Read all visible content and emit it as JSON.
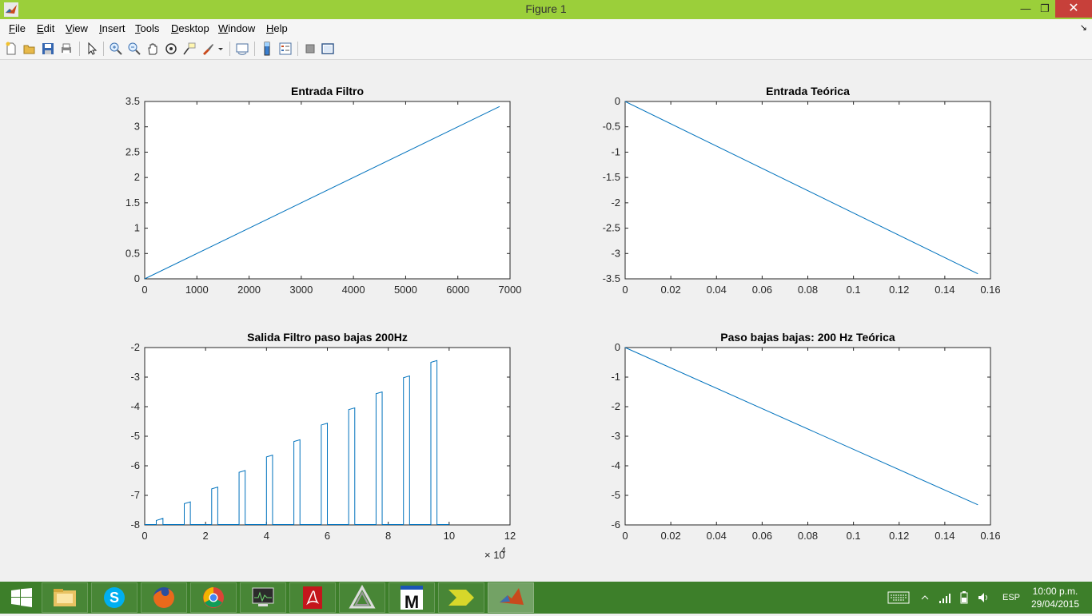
{
  "window": {
    "title": "Figure 1"
  },
  "menu": [
    "File",
    "Edit",
    "View",
    "Insert",
    "Tools",
    "Desktop",
    "Window",
    "Help"
  ],
  "menu_mnemonics": [
    "F",
    "E",
    "V",
    "I",
    "T",
    "D",
    "W",
    "H"
  ],
  "charts": [
    {
      "type": "line",
      "title": "Entrada Filtro",
      "xticks": [
        "0",
        "1000",
        "2000",
        "3000",
        "4000",
        "5000",
        "6000",
        "7000"
      ],
      "yticks": [
        "0",
        "0.5",
        "1",
        "1.5",
        "2",
        "2.5",
        "3",
        "3.5"
      ],
      "xlim": [
        0,
        7000
      ],
      "ylim": [
        0,
        3.5
      ],
      "series": [
        {
          "x": [
            0,
            6800
          ],
          "y": [
            0,
            3.4
          ]
        }
      ],
      "color": "#0072bd"
    },
    {
      "type": "line",
      "title": "Entrada Teórica",
      "xticks": [
        "0",
        "0.02",
        "0.04",
        "0.06",
        "0.08",
        "0.1",
        "0.12",
        "0.14",
        "0.16"
      ],
      "yticks": [
        "0",
        "-0.5",
        "-1",
        "-1.5",
        "-2",
        "-2.5",
        "-3",
        "-3.5"
      ],
      "xlim": [
        0,
        0.16
      ],
      "ylim": [
        -3.5,
        0
      ],
      "series": [
        {
          "x": [
            0,
            0.1545
          ],
          "y": [
            0,
            -3.4
          ]
        }
      ],
      "color": "#0072bd"
    },
    {
      "type": "line",
      "title": "Salida Filtro paso bajas 200Hz",
      "xticks": [
        "0",
        "2",
        "4",
        "6",
        "8",
        "10",
        "12"
      ],
      "yticks": [
        "-2",
        "-3",
        "-4",
        "-5",
        "-6",
        "-7",
        "-8"
      ],
      "xlim": [
        0,
        12
      ],
      "ylim": [
        -8,
        -2
      ],
      "exponent": "× 10",
      "exponent_power": "4",
      "pulses": [
        {
          "x0": 0.38,
          "x1": 0.6,
          "ya": -7.85,
          "yb": -7.78
        },
        {
          "x0": 1.3,
          "x1": 1.5,
          "ya": -7.28,
          "yb": -7.22
        },
        {
          "x0": 2.2,
          "x1": 2.4,
          "ya": -6.78,
          "yb": -6.72
        },
        {
          "x0": 3.1,
          "x1": 3.3,
          "ya": -6.22,
          "yb": -6.16
        },
        {
          "x0": 4.0,
          "x1": 4.2,
          "ya": -5.7,
          "yb": -5.64
        },
        {
          "x0": 4.9,
          "x1": 5.1,
          "ya": -5.18,
          "yb": -5.12
        },
        {
          "x0": 5.8,
          "x1": 6.0,
          "ya": -4.62,
          "yb": -4.56
        },
        {
          "x0": 6.7,
          "x1": 6.9,
          "ya": -4.1,
          "yb": -4.04
        },
        {
          "x0": 7.6,
          "x1": 7.8,
          "ya": -3.56,
          "yb": -3.5
        },
        {
          "x0": 8.5,
          "x1": 8.7,
          "ya": -3.02,
          "yb": -2.96
        },
        {
          "x0": 9.4,
          "x1": 9.6,
          "ya": -2.5,
          "yb": -2.44
        }
      ],
      "baseline_end": 10.0,
      "color": "#0072bd"
    },
    {
      "type": "line",
      "title": "Paso bajas bajas: 200 Hz Teórica",
      "xticks": [
        "0",
        "0.02",
        "0.04",
        "0.06",
        "0.08",
        "0.1",
        "0.12",
        "0.14",
        "0.16"
      ],
      "yticks": [
        "0",
        "-1",
        "-2",
        "-3",
        "-4",
        "-5",
        "-6"
      ],
      "xlim": [
        0,
        0.16
      ],
      "ylim": [
        -6,
        0
      ],
      "series": [
        {
          "x": [
            0,
            0.1545
          ],
          "y": [
            0,
            -5.32
          ]
        }
      ],
      "color": "#0072bd"
    }
  ],
  "taskbar": {
    "apps": [
      "windows-start",
      "file-explorer",
      "skype",
      "firefox",
      "chrome",
      "system-monitor",
      "acrobat",
      "app-triangle",
      "app-m",
      "app-arrow",
      "matlab"
    ],
    "tray_language": "ESP",
    "clock_time": "10:00 p.m.",
    "clock_date": "29/04/2015"
  }
}
